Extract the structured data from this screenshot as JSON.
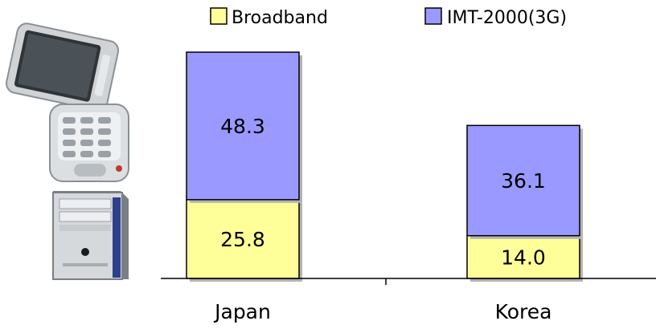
{
  "chart_data": {
    "type": "bar",
    "stacked": true,
    "categories": [
      "Japan",
      "Korea"
    ],
    "series": [
      {
        "name": "Broadband",
        "values": [
          25.8,
          14.0
        ],
        "color": "#ffff99"
      },
      {
        "name": "IMT-2000(3G)",
        "values": [
          48.3,
          36.1
        ],
        "color": "#9999ff"
      }
    ],
    "data_labels": [
      [
        "25.8",
        "14.0"
      ],
      [
        "48.3",
        "36.1"
      ]
    ],
    "ylim": [
      0,
      80
    ],
    "grid": false,
    "legend_position": "top"
  },
  "illustrations": [
    {
      "name": "mobile-phone-icon"
    },
    {
      "name": "desktop-computer-icon"
    }
  ]
}
